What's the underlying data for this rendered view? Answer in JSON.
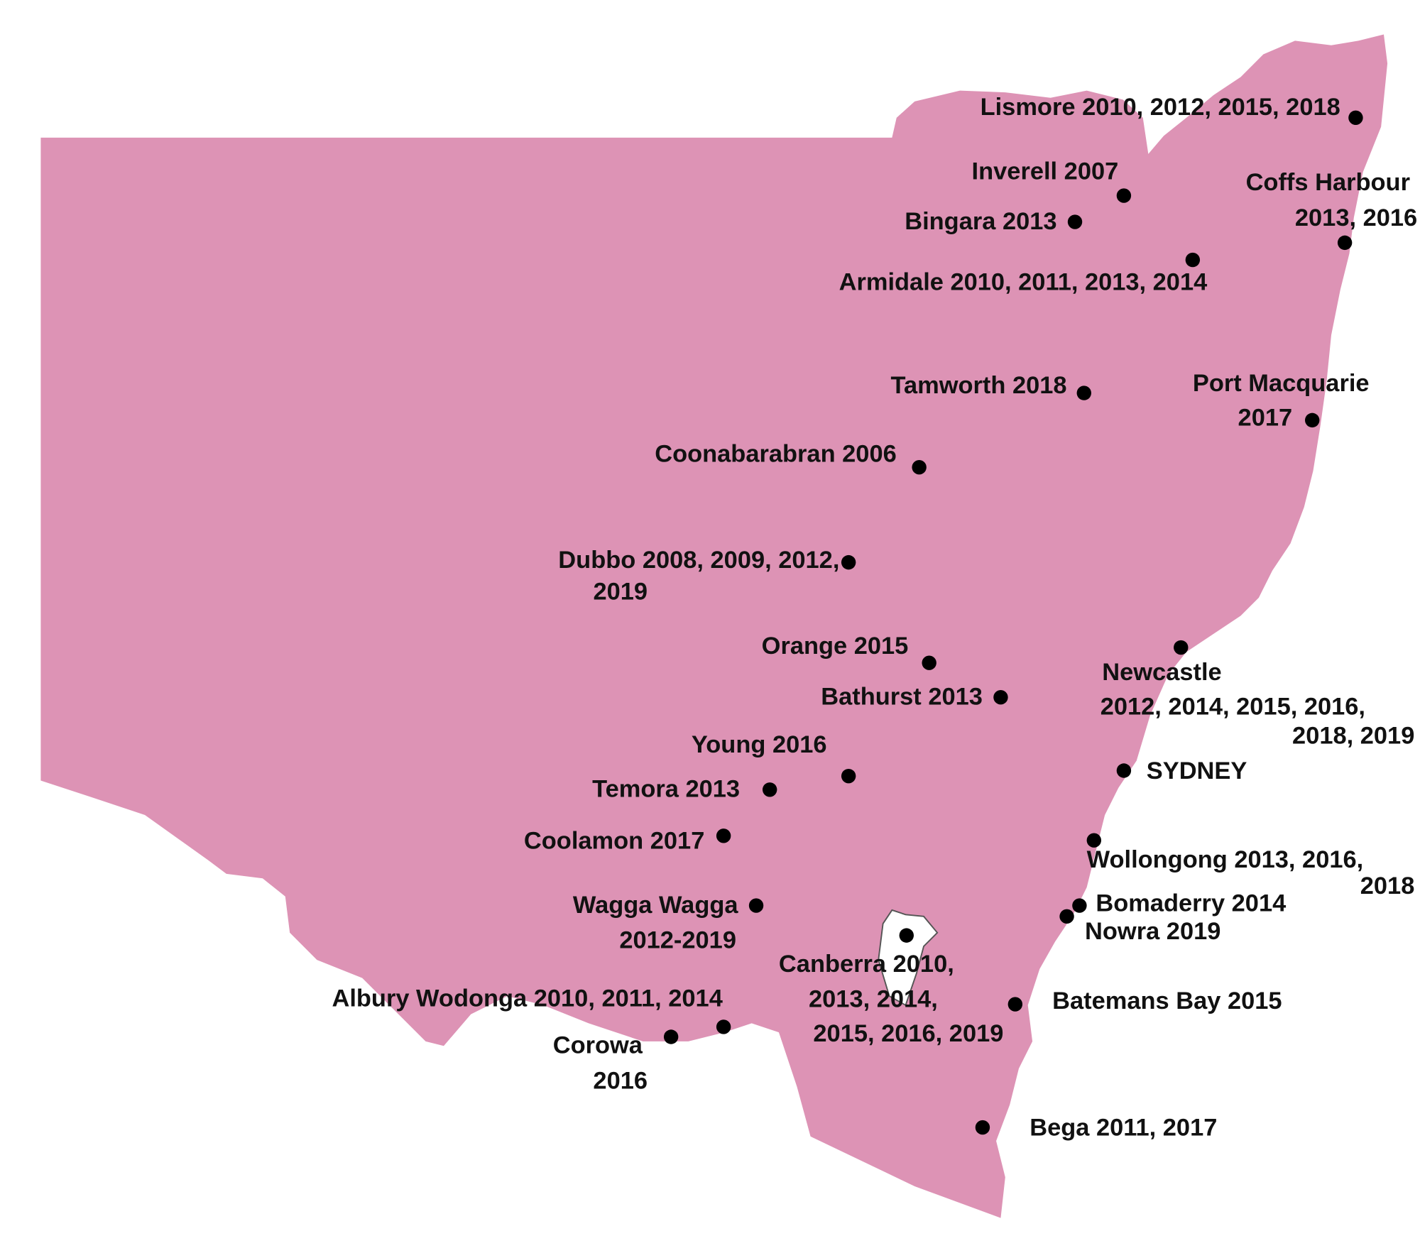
{
  "places": [
    {
      "lines": [
        "Lismore 2010, 2012, 2015, 2018"
      ]
    },
    {
      "lines": [
        "Inverell 2007"
      ]
    },
    {
      "lines": [
        "Bingara 2013"
      ]
    },
    {
      "lines": [
        "Coffs Harbour",
        "2013, 2016"
      ]
    },
    {
      "lines": [
        "Armidale 2010, 2011, 2013, 2014"
      ]
    },
    {
      "lines": [
        "Tamworth 2018"
      ]
    },
    {
      "lines": [
        "Port Macquarie",
        "2017"
      ]
    },
    {
      "lines": [
        "Coonabarabran 2006"
      ]
    },
    {
      "lines": [
        "Dubbo 2008, 2009, 2012,",
        "2019"
      ]
    },
    {
      "lines": [
        "Orange 2015"
      ]
    },
    {
      "lines": [
        "Bathurst 2013"
      ]
    },
    {
      "lines": [
        "Newcastle",
        "2012, 2014, 2015, 2016,",
        "2018, 2019"
      ]
    },
    {
      "lines": [
        "SYDNEY"
      ]
    },
    {
      "lines": [
        "Young 2016"
      ]
    },
    {
      "lines": [
        "Temora 2013"
      ]
    },
    {
      "lines": [
        "Coolamon 2017"
      ]
    },
    {
      "lines": [
        "Wollongong 2013, 2016,",
        "2018"
      ]
    },
    {
      "lines": [
        "Wagga Wagga",
        "2012-2019"
      ]
    },
    {
      "lines": [
        "Bomaderry 2014"
      ]
    },
    {
      "lines": [
        "Nowra 2019"
      ]
    },
    {
      "lines": [
        "Canberra 2010,",
        "2013, 2014,",
        "2015, 2016, 2019"
      ]
    },
    {
      "lines": [
        "Batemans Bay 2015"
      ]
    },
    {
      "lines": [
        "Albury Wodonga 2010, 2011, 2014"
      ]
    },
    {
      "lines": [
        "Corowa",
        "2016"
      ]
    },
    {
      "lines": [
        "Bega 2011, 2017"
      ]
    }
  ]
}
